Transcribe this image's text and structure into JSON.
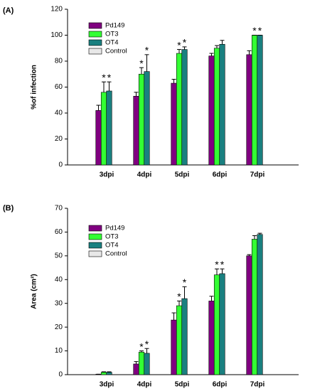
{
  "chart_data": [
    {
      "type": "bar",
      "panel": "(A)",
      "ylabel": "%of infection",
      "categories": [
        "3dpi",
        "4dpi",
        "5dpi",
        "6dpi",
        "7dpi"
      ],
      "ylim": [
        0,
        120
      ],
      "yticks": [
        0,
        20,
        40,
        60,
        80,
        100,
        120
      ],
      "legend": "upper left",
      "series": [
        {
          "name": "Pd149",
          "color": "#800080",
          "values": [
            42,
            53,
            63,
            84,
            85
          ],
          "errors": [
            4,
            3,
            3,
            2,
            3
          ],
          "stars": [
            null,
            null,
            null,
            null,
            null
          ]
        },
        {
          "name": "OT3",
          "color": "#33ff33",
          "values": [
            56,
            70,
            86,
            90,
            100
          ],
          "errors": [
            8,
            5,
            3,
            2,
            0
          ],
          "stars": [
            "*",
            "*",
            "*",
            null,
            "*"
          ]
        },
        {
          "name": "OT4",
          "color": "#1a8080",
          "values": [
            57,
            72,
            89,
            93,
            100
          ],
          "errors": [
            7,
            13,
            2,
            3,
            0
          ],
          "stars": [
            "*",
            "*",
            "*",
            null,
            "*"
          ]
        },
        {
          "name": "Control",
          "color": "#e8e8e8",
          "values": [
            null,
            null,
            null,
            null,
            null
          ]
        }
      ]
    },
    {
      "type": "bar",
      "panel": "(B)",
      "ylabel": "Area (cm²)",
      "categories": [
        "3dpi",
        "4dpi",
        "5dpi",
        "6dpi",
        "7dpi"
      ],
      "ylim": [
        0,
        70
      ],
      "yticks": [
        0,
        10,
        20,
        30,
        40,
        50,
        60,
        70
      ],
      "legend": "upper left",
      "series": [
        {
          "name": "Pd149",
          "color": "#800080",
          "values": [
            0.2,
            4.5,
            23,
            31,
            50
          ],
          "errors": [
            0,
            1,
            3,
            2,
            0.5
          ],
          "stars": [
            null,
            null,
            null,
            null,
            null
          ]
        },
        {
          "name": "OT3",
          "color": "#33ff33",
          "values": [
            1,
            9.5,
            29,
            42,
            57
          ],
          "errors": [
            0.2,
            0.5,
            2,
            2.5,
            1.5
          ],
          "stars": [
            null,
            "*",
            "*",
            "*",
            null
          ]
        },
        {
          "name": "OT4",
          "color": "#1a8080",
          "values": [
            1,
            9,
            32,
            42.5,
            59
          ],
          "errors": [
            0.2,
            2,
            5,
            2,
            0.5
          ],
          "stars": [
            null,
            "*",
            "*",
            "*",
            null
          ]
        },
        {
          "name": "Control",
          "color": "#e8e8e8",
          "values": [
            null,
            null,
            null,
            null,
            null
          ]
        }
      ]
    }
  ]
}
